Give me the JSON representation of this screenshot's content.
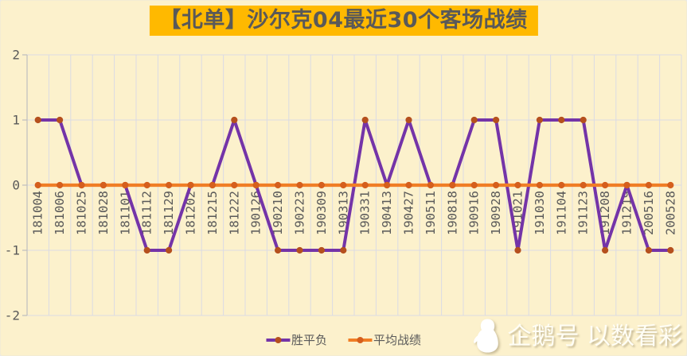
{
  "title": "【北单】沙尔克04最近30个客场战绩",
  "watermark": {
    "icon": "penguin-icon",
    "text": "企鹅号 以数看彩"
  },
  "colors": {
    "background": "#FCF1CC",
    "title_bg": "#FFB900",
    "title_text": "#595959",
    "grid": "#DBDBE4",
    "axis": "#BFBFBF",
    "tick_text": "#595959"
  },
  "chart_data": {
    "type": "line",
    "title": "【北单】沙尔克04最近30个客场战绩",
    "categories": [
      "181004",
      "181006",
      "181025",
      "181028",
      "181101",
      "181112",
      "181129",
      "181202",
      "181215",
      "181222",
      "190126",
      "190210",
      "190223",
      "190309",
      "190313",
      "190331",
      "190413",
      "190427",
      "190511",
      "190818",
      "190916",
      "190928",
      "191021",
      "191030",
      "191104",
      "191123",
      "191208",
      "191219",
      "200516",
      "200528"
    ],
    "series": [
      {
        "name": "胜平负",
        "color": "#7434A8",
        "marker_color": "#B5501E",
        "values": [
          1,
          1,
          0,
          0,
          0,
          -1,
          -1,
          0,
          0,
          1,
          0,
          -1,
          -1,
          -1,
          -1,
          1,
          0,
          1,
          0,
          0,
          1,
          1,
          -1,
          1,
          1,
          1,
          -1,
          0,
          -1,
          -1
        ]
      },
      {
        "name": "平均战绩",
        "color": "#F07E26",
        "marker_color": "#D55F1D",
        "values": [
          0,
          0,
          0,
          0,
          0,
          0,
          0,
          0,
          0,
          0,
          0,
          0,
          0,
          0,
          0,
          0,
          0,
          0,
          0,
          0,
          0,
          0,
          0,
          0,
          0,
          0,
          0,
          0,
          0,
          0
        ]
      }
    ],
    "xlabel": "",
    "ylabel": "",
    "ylim": [
      -2,
      2
    ],
    "yticks": [
      2,
      1,
      0,
      -1,
      -2
    ],
    "grid": true,
    "legend_position": "bottom",
    "x_label_rotation": -90
  }
}
